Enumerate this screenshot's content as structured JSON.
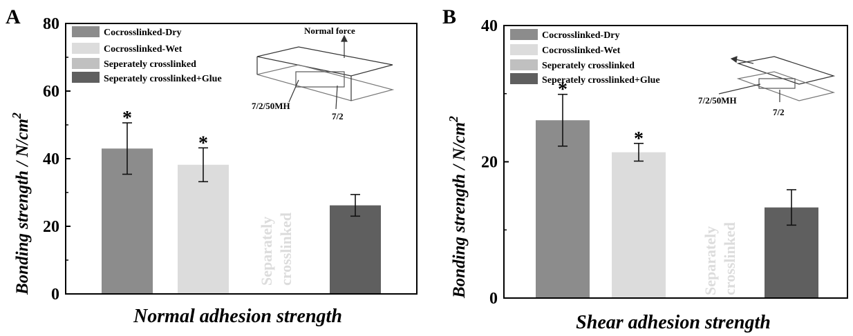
{
  "panels": [
    {
      "letter": "A",
      "ylabel": "Bonding strength / N/cm",
      "ylabel_sup": "2",
      "xlabel": "Normal adhesion strength",
      "ticks": [
        "0",
        "20",
        "40",
        "60",
        "80"
      ],
      "legend": [
        "Cocrosslinked-Dry",
        "Cocrosslinked-Wet",
        "Seperately crosslinked",
        "Seperately crosslinked+Glue"
      ],
      "vertical_text": [
        "Separately",
        "crosslinked"
      ],
      "inset_labels": [
        "Normal force",
        "7/2/50MH",
        "7/2"
      ]
    },
    {
      "letter": "B",
      "ylabel": "Bonding strength / N/cm",
      "ylabel_sup": "2",
      "xlabel": "Shear adhesion strength",
      "ticks": [
        "0",
        "20",
        "40"
      ],
      "legend": [
        "Cocrosslinked-Dry",
        "Cocrosslinked-Wet",
        "Seperately crosslinked",
        "Seperately crosslinked+Glue"
      ],
      "vertical_text": [
        "Separately",
        "crosslinked"
      ],
      "inset_labels": [
        "7/2/50MH",
        "7/2"
      ]
    }
  ],
  "colors": {
    "cocrosslinked_dry": "#8c8c8c",
    "cocrosslinked_wet": "#dcdcdc",
    "seperately_crosslinked": "#c0c0c0",
    "seperately_crosslinked_glue": "#5f5f5f"
  },
  "chart_data": [
    {
      "type": "bar",
      "title": "",
      "xlabel": "Normal adhesion strength",
      "ylabel": "Bonding strength / N/cm2",
      "ylim": [
        0,
        80
      ],
      "categories": [
        "Cocrosslinked-Dry",
        "Cocrosslinked-Wet",
        "Seperately crosslinked",
        "Seperately crosslinked+Glue"
      ],
      "values": [
        43,
        38.2,
        null,
        26.2
      ],
      "errors": [
        7.6,
        5.0,
        null,
        3.2
      ],
      "significance": [
        "*",
        "*",
        "",
        ""
      ],
      "legend_position": "top-left",
      "grid": false
    },
    {
      "type": "bar",
      "title": "",
      "xlabel": "Shear adhesion strength",
      "ylabel": "Bonding strength / N/cm2",
      "ylim": [
        0,
        40
      ],
      "categories": [
        "Cocrosslinked-Dry",
        "Cocrosslinked-Wet",
        "Seperately crosslinked",
        "Seperately crosslinked+Glue"
      ],
      "values": [
        26.1,
        21.4,
        null,
        13.3
      ],
      "errors": [
        3.8,
        1.3,
        null,
        2.6
      ],
      "significance": [
        "*",
        "*",
        "",
        ""
      ],
      "legend_position": "top-left",
      "grid": false
    }
  ]
}
